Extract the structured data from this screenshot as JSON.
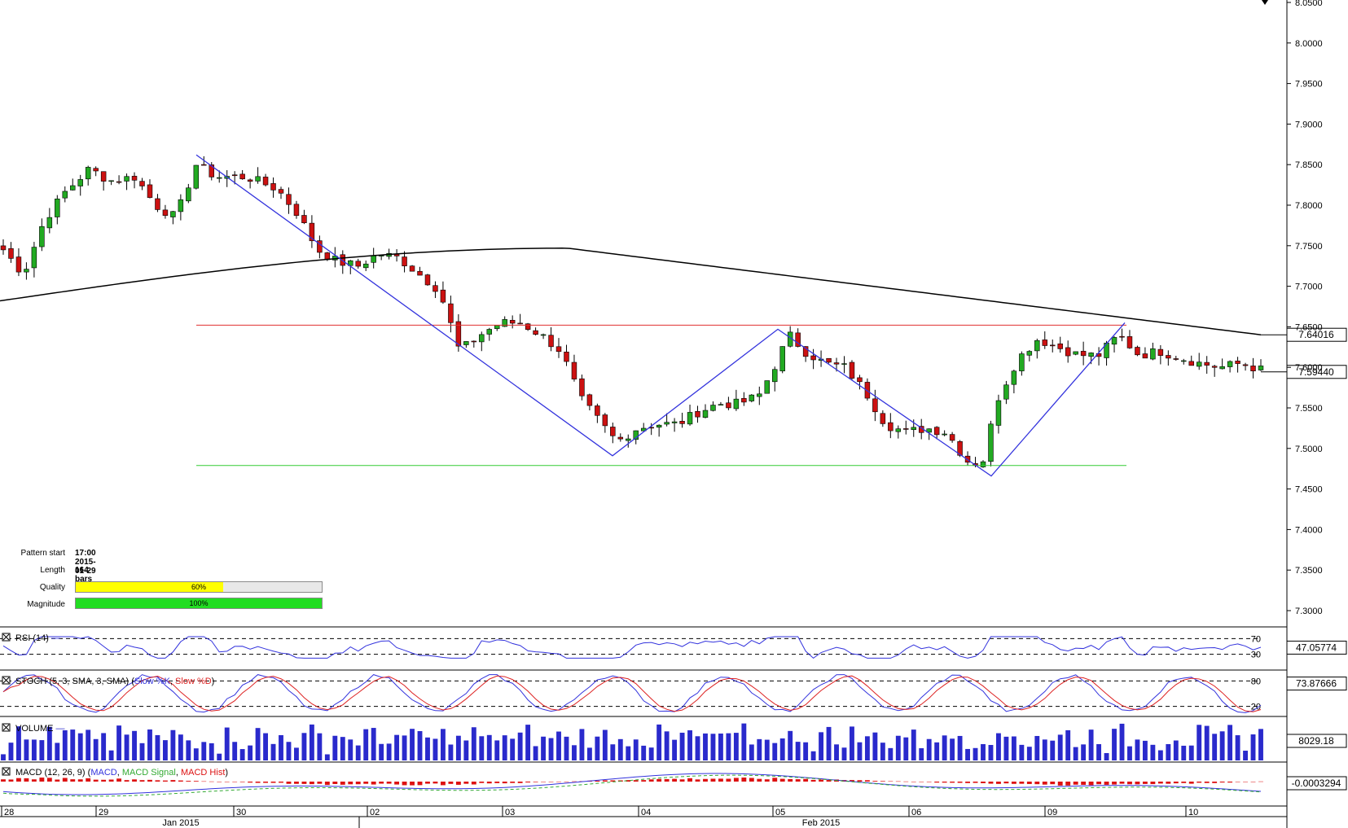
{
  "chart_data": {
    "type": "candlestick",
    "instrument_price_scale": {
      "ylim": [
        7.275,
        8.05
      ],
      "ticks": [
        "8.0500",
        "8.0000",
        "7.9500",
        "7.9000",
        "7.8500",
        "7.8000",
        "7.7500",
        "7.7000",
        "7.6500",
        "7.6000",
        "7.5500",
        "7.5000",
        "7.4500",
        "7.4000",
        "7.3500",
        "7.3000"
      ]
    },
    "current_price_label": "7.59440",
    "current_price": 7.5944,
    "moving_average_label": "7.64016",
    "moving_average_end": 7.64016,
    "pattern": {
      "resistance": 7.652,
      "support": 7.479,
      "zigzag_prices": [
        7.862,
        7.491,
        7.647,
        7.466,
        7.655
      ],
      "colors": {
        "resistance": "#e03030",
        "support": "#33cc33",
        "zigzag": "#3333dd"
      }
    },
    "x_axis": {
      "day_labels": [
        "28",
        "29",
        "30",
        "02",
        "03",
        "04",
        "05",
        "06",
        "09",
        "10"
      ],
      "month_labels": [
        "Jan 2015",
        "Feb 2015"
      ]
    },
    "indicators": {
      "rsi": {
        "label": "RSI (14)",
        "value": "47.05774",
        "levels": [
          "70",
          "30"
        ]
      },
      "stoch": {
        "label": "STOCH (5, 3, SMA, 3, SMA)",
        "k_label": "Slow %K",
        "d_label": "Slow %D",
        "value": "73.87666",
        "levels": [
          "80",
          "20"
        ]
      },
      "volume": {
        "label": "VOLUME",
        "value": "8029.18"
      },
      "macd": {
        "label": "MACD (12, 26, 9)",
        "macd_label": "MACD",
        "signal_label": "MACD Signal",
        "hist_label": "MACD Hist",
        "value": "-0.0003294"
      }
    },
    "colors": {
      "bull": "#22aa22",
      "bear": "#cc1111",
      "ma": "#000000",
      "rsi": "#3333dd",
      "k": "#3333dd",
      "d": "#dd2222",
      "volume": "#2a2acc",
      "macd": "#3333dd",
      "signal": "#33aa33",
      "hist": "#dd1111"
    }
  },
  "pattern_info": {
    "start_label": "Pattern start",
    "start_value": "17:00 2015-01-29",
    "length_label": "Length",
    "length_value": "164 bars",
    "quality_label": "Quality",
    "quality_value": "60%",
    "quality_fraction": 0.6,
    "magnitude_label": "Magnitude",
    "magnitude_value": "100%",
    "magnitude_fraction": 1.0
  }
}
